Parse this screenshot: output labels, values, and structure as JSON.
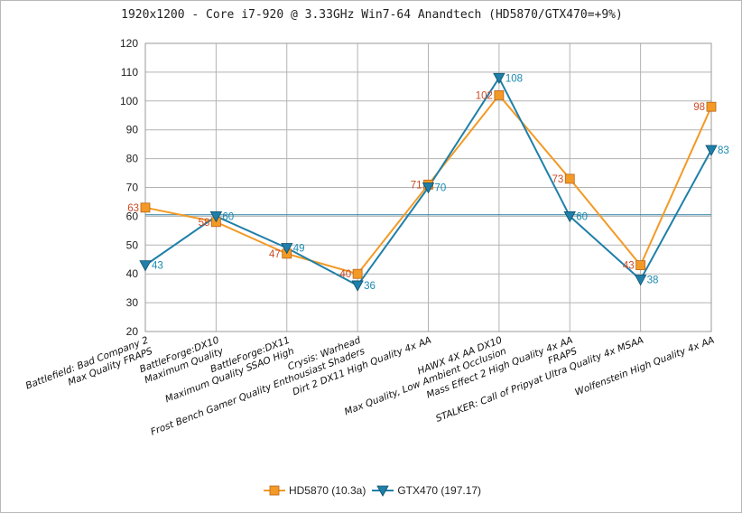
{
  "chart_data": {
    "type": "line",
    "title": "1920x1200 - Core i7-920 @ 3.33GHz Win7-64 Anandtech (HD5870/GTX470=+9%)",
    "categories": [
      [
        "Battlefield: Bad Company 2",
        "Max Quality FRAPS"
      ],
      [
        "BattleForge:DX10",
        "Maximum Quality"
      ],
      [
        "BattleForge:DX11",
        "Maximum Quality SSAO High"
      ],
      [
        "Crysis: Warhead",
        "Frost Bench Gamer Quality Enthousiast Shaders"
      ],
      [
        "Dirt 2 DX11 High Quality 4x AA"
      ],
      [
        "HAWX 4X AA DX10",
        "Max Quality, Low Ambient Occlusion"
      ],
      [
        "Mass Effect 2 High Quality 4x AA",
        "FRAPS"
      ],
      [
        "STALKER: Call of Pripyat Ultra Quality 4x MSAA"
      ],
      [
        "Wolfenstein High Quality 4x AA"
      ]
    ],
    "series": [
      {
        "name": "HD5870 (10.3a)",
        "color": "#f39a26",
        "label_color": "#cc4b27",
        "marker": "square",
        "values": [
          63,
          58,
          47,
          40,
          71,
          102,
          73,
          43,
          98
        ]
      },
      {
        "name": "GTX470 (197.17)",
        "color": "#1f7fa8",
        "label_color": "#1a8ab0",
        "marker": "triangle-down",
        "values": [
          43,
          60,
          49,
          36,
          70,
          108,
          60,
          38,
          83
        ]
      }
    ],
    "reference_line": {
      "value": 60.5,
      "color": "#2b7fa0"
    },
    "ylim": [
      20,
      120
    ],
    "yticks": [
      20,
      30,
      40,
      50,
      60,
      70,
      80,
      90,
      100,
      110,
      120
    ],
    "grid": true,
    "legend_position": "bottom"
  }
}
